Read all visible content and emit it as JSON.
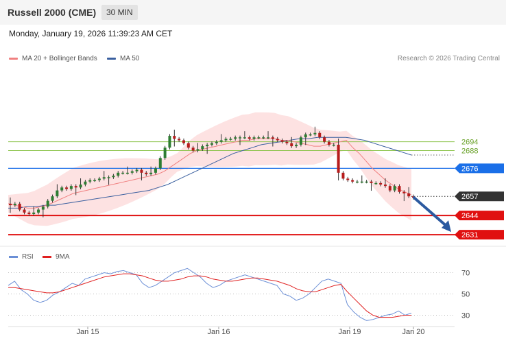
{
  "header": {
    "title": "Russell 2000 (CME)",
    "timeframe": "30 MIN"
  },
  "timestamp": "Monday, January 19, 2026 11:39:23 AM CET",
  "legend": {
    "ma20": "MA 20 + Bollinger Bands",
    "ma50": "MA 50",
    "ma20_color": "#f08080",
    "ma50_color": "#3a5f9f"
  },
  "credit": "Research © 2026 Trading Central",
  "rsi_legend": {
    "rsi": "RSI",
    "ma9": "9MA",
    "rsi_color": "#6b8fd6",
    "ma9_color": "#e02020"
  },
  "chart_data": [
    {
      "type": "candlestick",
      "price_axis": {
        "min": 2625,
        "max": 2745
      },
      "x_ticks": [
        "Jan 15",
        "Jan 16",
        "Jan 19",
        "Jan 20"
      ],
      "levels": [
        {
          "value": 2694,
          "label": "2694",
          "kind": "resistance",
          "color": "#8bc34a"
        },
        {
          "value": 2688,
          "label": "2688",
          "kind": "resistance",
          "color": "#8bc34a"
        },
        {
          "value": 2676,
          "label": "2676",
          "kind": "pivot",
          "color": "#1a6fe8"
        },
        {
          "value": 2657,
          "label": "2657",
          "kind": "last-price",
          "color": "#333333"
        },
        {
          "value": 2644,
          "label": "2644",
          "kind": "support",
          "color": "#e01010"
        },
        {
          "value": 2631,
          "label": "2631",
          "kind": "support",
          "color": "#e01010"
        }
      ],
      "price_path": [
        2651,
        2652,
        2648,
        2646,
        2645,
        2646,
        2648,
        2650,
        2654,
        2657,
        2661,
        2663,
        2662,
        2664,
        2663,
        2665,
        2667,
        2668,
        2668,
        2669,
        2670,
        2670,
        2671,
        2673,
        2673,
        2673,
        2674,
        2675,
        2673,
        2672,
        2673,
        2676,
        2683,
        2690,
        2698,
        2696,
        2695,
        2693,
        2690,
        2688,
        2689,
        2691,
        2692,
        2693,
        2694,
        2695,
        2696,
        2696,
        2697,
        2697,
        2697,
        2696,
        2697,
        2697,
        2697,
        2697,
        2696,
        2695,
        2694,
        2693,
        2691,
        2692,
        2697,
        2699,
        2699,
        2700,
        2697,
        2694,
        2692,
        2692,
        2673,
        2669,
        2668,
        2667,
        2667,
        2667,
        2667,
        2666,
        2666,
        2665,
        2664,
        2661,
        2664,
        2660,
        2659,
        2657,
        2656
      ],
      "ma20": [
        2652,
        2651,
        2650,
        2649,
        2649,
        2650,
        2651,
        2653,
        2655,
        2657,
        2659,
        2660,
        2661,
        2662,
        2663,
        2664,
        2665,
        2666,
        2667,
        2668,
        2669,
        2670,
        2671,
        2672,
        2674,
        2677,
        2680,
        2683,
        2686,
        2688,
        2689,
        2690,
        2691,
        2692,
        2693,
        2694,
        2695,
        2695,
        2696,
        2696,
        2696,
        2696,
        2695,
        2695,
        2694,
        2693,
        2692,
        2691,
        2691,
        2692,
        2693,
        2694,
        2695,
        2690,
        2686,
        2681,
        2676,
        2672,
        2668,
        2665,
        2662,
        2660,
        2658
      ],
      "ma50": [
        2649,
        2649,
        2650,
        2650,
        2651,
        2651,
        2652,
        2653,
        2654,
        2655,
        2656,
        2657,
        2658,
        2659,
        2660,
        2661,
        2663,
        2665,
        2668,
        2671,
        2674,
        2677,
        2680,
        2683,
        2686,
        2688,
        2690,
        2692,
        2693,
        2694,
        2695,
        2696,
        2696,
        2697,
        2697,
        2697,
        2697,
        2696,
        2695,
        2693,
        2691,
        2689,
        2687,
        2685
      ],
      "forecast": {
        "from": 2657,
        "to": 2631
      }
    },
    {
      "type": "line",
      "name": "RSI",
      "y_ticks": [
        70,
        50,
        30
      ],
      "ylim": [
        20,
        80
      ],
      "series": [
        {
          "name": "RSI",
          "values": [
            58,
            62,
            54,
            50,
            44,
            42,
            44,
            49,
            52,
            56,
            60,
            58,
            64,
            66,
            68,
            70,
            69,
            71,
            72,
            70,
            68,
            60,
            56,
            58,
            62,
            66,
            70,
            72,
            74,
            70,
            66,
            60,
            56,
            58,
            62,
            64,
            66,
            68,
            66,
            64,
            62,
            60,
            58,
            50,
            48,
            44,
            46,
            50,
            56,
            62,
            64,
            62,
            60,
            40,
            33,
            28,
            25,
            26,
            28,
            30,
            31,
            34,
            30,
            32
          ]
        },
        {
          "name": "9MA",
          "values": [
            56,
            56,
            55,
            54,
            53,
            52,
            51,
            51,
            52,
            54,
            56,
            58,
            60,
            62,
            64,
            66,
            67,
            68,
            69,
            69,
            68,
            67,
            65,
            63,
            62,
            62,
            63,
            64,
            66,
            67,
            67,
            66,
            64,
            63,
            62,
            62,
            63,
            64,
            65,
            65,
            64,
            63,
            62,
            60,
            58,
            55,
            53,
            52,
            52,
            54,
            56,
            58,
            59,
            52,
            46,
            40,
            34,
            30,
            28,
            28,
            28,
            29,
            30,
            30
          ]
        }
      ]
    }
  ]
}
